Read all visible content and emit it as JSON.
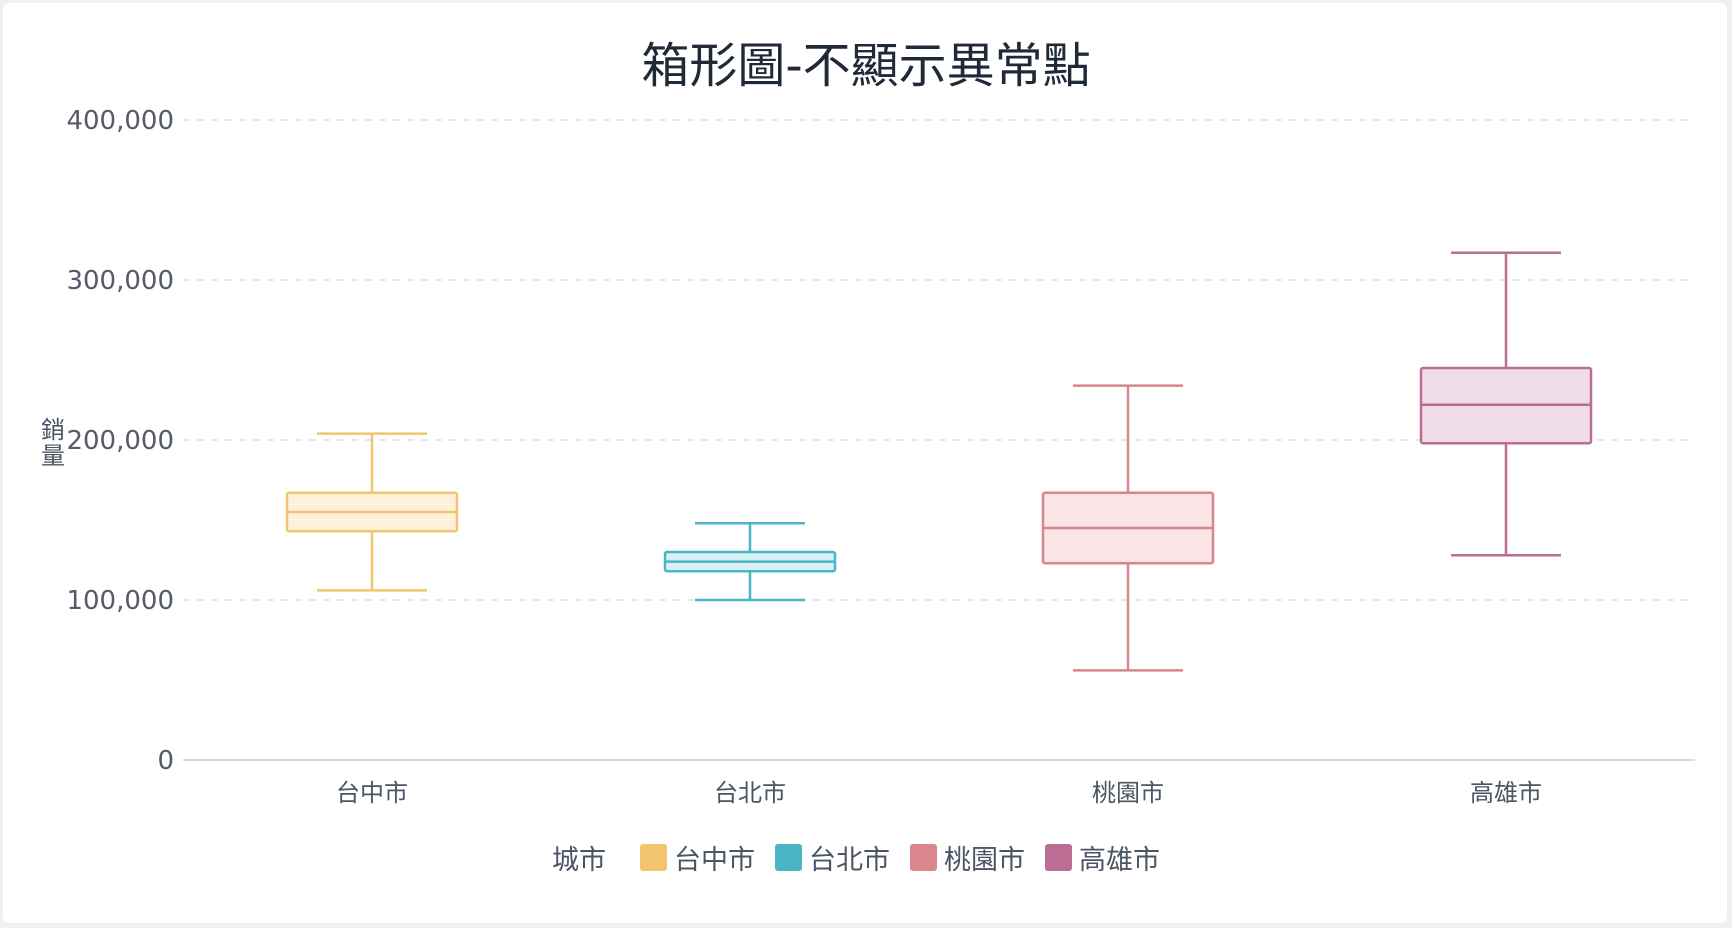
{
  "chart_data": {
    "type": "boxplot",
    "title": "箱形圖-不顯示異常點",
    "ylabel": "銷量",
    "xlabel": "",
    "ylim": [
      0,
      400000
    ],
    "yticks": [
      0,
      100000,
      200000,
      300000,
      400000
    ],
    "ytick_labels": [
      "0",
      "100,000",
      "200,000",
      "300,000",
      "400,000"
    ],
    "grid": true,
    "legend_title": "城市",
    "legend_position": "bottom",
    "categories": [
      "台中市",
      "台北市",
      "桃園市",
      "高雄市"
    ],
    "series": [
      {
        "name": "台中市",
        "color": "#f2c46d",
        "fill": "#fdf1dc",
        "min": 106000,
        "q1": 143000,
        "median": 155000,
        "q3": 167000,
        "max": 204000
      },
      {
        "name": "台北市",
        "color": "#4ab5c4",
        "fill": "#d9f1f4",
        "min": 100000,
        "q1": 118000,
        "median": 124000,
        "q3": 130000,
        "max": 148000
      },
      {
        "name": "桃園市",
        "color": "#d9868e",
        "fill": "#fbe5e6",
        "min": 56000,
        "q1": 123000,
        "median": 145000,
        "q3": 167000,
        "max": 234000
      },
      {
        "name": "高雄市",
        "color": "#bb6d93",
        "fill": "#f0dce6",
        "min": 128000,
        "q1": 198000,
        "median": 222000,
        "q3": 245000,
        "max": 317000
      }
    ]
  }
}
